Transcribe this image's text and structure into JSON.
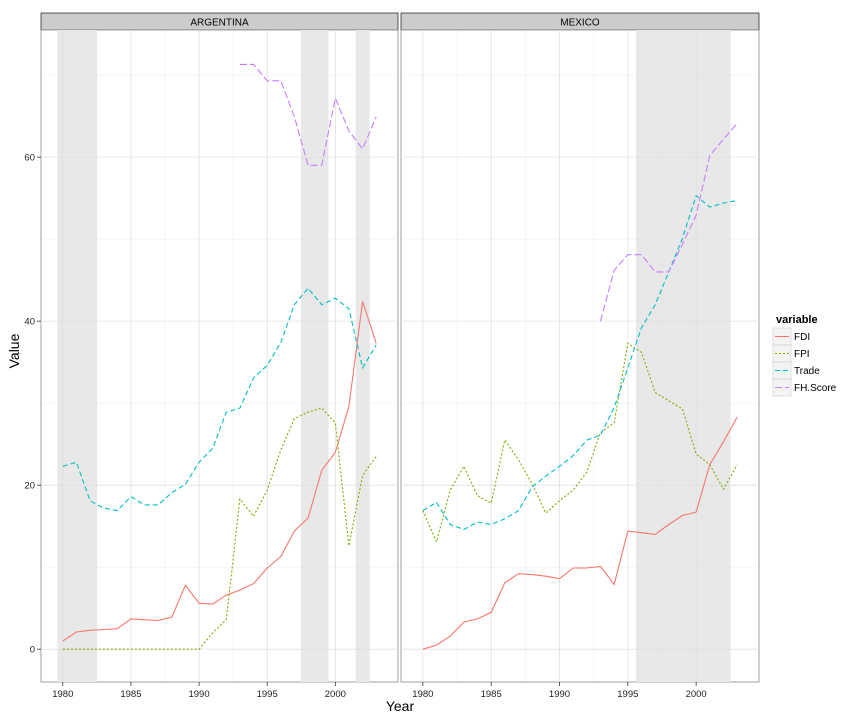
{
  "chart_data": {
    "type": "line",
    "xlabel": "Year",
    "ylabel": "Value",
    "xlim": [
      1978.4,
      2004.6
    ],
    "ylim": [
      -4,
      75.5
    ],
    "x_ticks": [
      1980,
      1985,
      1990,
      1995,
      2000
    ],
    "y_ticks": [
      0,
      20,
      40,
      60
    ],
    "x_tick_labels": [
      "1980",
      "1985",
      "1990",
      "1995",
      "2000"
    ],
    "y_tick_labels": [
      "0",
      "20",
      "40",
      "60"
    ],
    "grid": true,
    "legend": {
      "title": "variable",
      "position": "right"
    },
    "series_style": [
      {
        "name": "FDI",
        "color": "#F8766D",
        "dash": "solid"
      },
      {
        "name": "FPI",
        "color": "#7CAE00",
        "dash": "dotted"
      },
      {
        "name": "Trade",
        "color": "#00BFC4",
        "dash": "dashed"
      },
      {
        "name": "FH.Score",
        "color": "#C77CFF",
        "dash": "longdash"
      }
    ],
    "panels": [
      {
        "title": "ARGENTINA",
        "shaded_ranges": [
          [
            1979.6,
            1982.5
          ],
          [
            1997.5,
            1999.5
          ],
          [
            2001.5,
            2002.5
          ]
        ],
        "series": [
          {
            "name": "FDI",
            "x": [
              1980,
              1981,
              1982,
              1983,
              1984,
              1985,
              1986,
              1987,
              1988,
              1989,
              1990,
              1991,
              1992,
              1993,
              1994,
              1995,
              1996,
              1997,
              1998,
              1999,
              2000,
              2001,
              2002,
              2003
            ],
            "values": [
              1.0,
              2.1,
              2.3,
              2.4,
              2.5,
              3.7,
              3.6,
              3.5,
              3.9,
              7.8,
              5.6,
              5.5,
              6.6,
              7.2,
              8.0,
              9.9,
              11.3,
              14.4,
              16.0,
              21.8,
              24.0,
              29.6,
              42.4,
              37.3
            ]
          },
          {
            "name": "FPI",
            "x": [
              1980,
              1981,
              1982,
              1983,
              1984,
              1985,
              1986,
              1987,
              1988,
              1989,
              1990,
              1991,
              1992,
              1993,
              1994,
              1995,
              1996,
              1997,
              1998,
              1999,
              2000,
              2001,
              2002,
              2003
            ],
            "values": [
              0,
              0,
              0,
              0,
              0,
              0,
              0,
              0,
              0,
              0,
              0,
              2.0,
              3.6,
              18.3,
              16.2,
              19.4,
              24.3,
              28.1,
              28.9,
              29.4,
              27.6,
              12.6,
              21.2,
              23.5
            ]
          },
          {
            "name": "Trade",
            "x": [
              1980,
              1981,
              1982,
              1983,
              1984,
              1985,
              1986,
              1987,
              1988,
              1989,
              1990,
              1991,
              1992,
              1993,
              1994,
              1995,
              1996,
              1997,
              1998,
              1999,
              2000,
              2001,
              2002,
              2003
            ],
            "values": [
              22.3,
              22.8,
              18.1,
              17.2,
              16.9,
              18.6,
              17.6,
              17.6,
              19.1,
              20.1,
              22.8,
              24.5,
              28.9,
              29.4,
              33.1,
              34.6,
              37.4,
              42.0,
              44.0,
              42.0,
              42.8,
              41.5,
              34.3,
              37.1
            ]
          },
          {
            "name": "FH.Score",
            "x": [
              1993,
              1994,
              1995,
              1996,
              1997,
              1998,
              1999,
              2000,
              2001,
              2002,
              2003
            ],
            "values": [
              71.3,
              71.3,
              69.3,
              69.3,
              64.9,
              59.0,
              59.0,
              67.2,
              63.2,
              61.0,
              64.9
            ]
          }
        ]
      },
      {
        "title": "MEXICO",
        "shaded_ranges": [
          [
            1995.6,
            2002.5
          ]
        ],
        "series": [
          {
            "name": "FDI",
            "x": [
              1980,
              1981,
              1982,
              1983,
              1984,
              1985,
              1986,
              1987,
              1988,
              1989,
              1990,
              1991,
              1992,
              1993,
              1994,
              1995,
              1996,
              1997,
              1998,
              1999,
              2000,
              2001,
              2002,
              2003
            ],
            "values": [
              0.0,
              0.5,
              1.6,
              3.3,
              3.7,
              4.5,
              8.1,
              9.2,
              9.1,
              8.9,
              8.6,
              9.9,
              9.9,
              10.1,
              7.9,
              14.4,
              14.2,
              14.0,
              15.2,
              16.3,
              16.7,
              22.5,
              25.3,
              28.3
            ]
          },
          {
            "name": "FPI",
            "x": [
              1980,
              1981,
              1982,
              1983,
              1984,
              1985,
              1986,
              1987,
              1988,
              1989,
              1990,
              1991,
              1992,
              1993,
              1994,
              1995,
              1996,
              1997,
              1998,
              1999,
              2000,
              2001,
              2002,
              2003
            ],
            "values": [
              16.9,
              13.1,
              19.4,
              22.3,
              18.7,
              17.8,
              25.5,
              23.1,
              20.1,
              16.6,
              18.1,
              19.4,
              21.6,
              26.4,
              27.6,
              37.3,
              36.2,
              31.3,
              30.3,
              29.3,
              23.8,
              22.5,
              19.5,
              22.5
            ]
          },
          {
            "name": "Trade",
            "x": [
              1980,
              1981,
              1982,
              1983,
              1984,
              1985,
              1986,
              1987,
              1988,
              1989,
              1990,
              1991,
              1992,
              1993,
              1994,
              1995,
              1996,
              1997,
              1998,
              1999,
              2000,
              2001,
              2002,
              2003
            ],
            "values": [
              16.9,
              17.9,
              15.2,
              14.6,
              15.5,
              15.2,
              15.9,
              16.9,
              19.8,
              21.1,
              22.3,
              23.6,
              25.5,
              26.1,
              29.5,
              34.3,
              39.2,
              42.0,
              46.0,
              50.1,
              55.3,
              53.9,
              54.4,
              54.7
            ]
          },
          {
            "name": "FH.Score",
            "x": [
              1993,
              1994,
              1995,
              1996,
              1997,
              1998,
              1999,
              2000,
              2001,
              2002,
              2003
            ],
            "values": [
              40.0,
              46.2,
              48.1,
              48.1,
              46.0,
              46.0,
              49.4,
              52.9,
              60.2,
              62.2,
              64.1
            ]
          }
        ]
      }
    ]
  }
}
